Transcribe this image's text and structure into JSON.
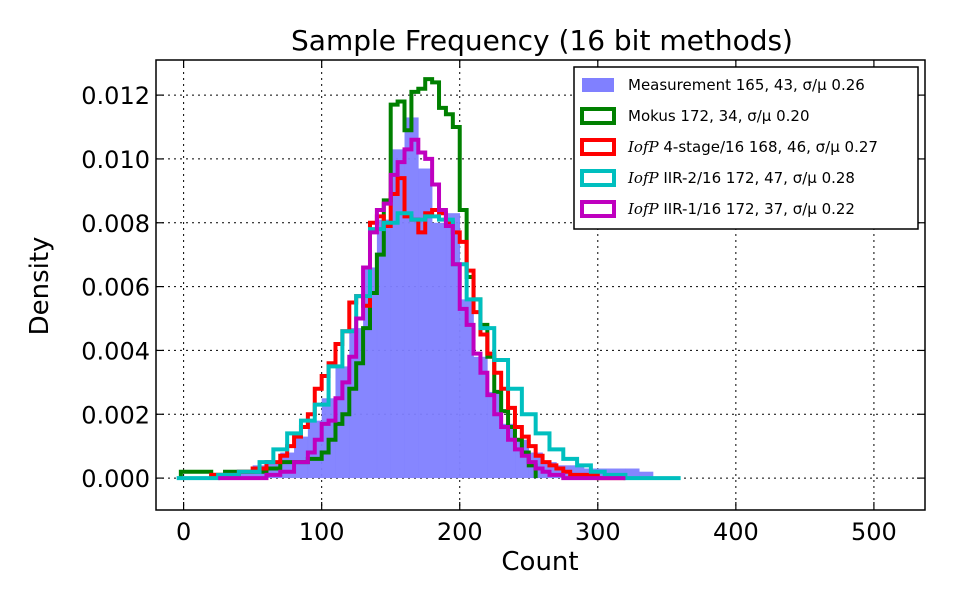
{
  "chart_data": {
    "type": "histogram",
    "title": "Sample Frequency (16 bit methods)",
    "xlabel": "Count",
    "ylabel": "Density",
    "xlim": [
      -20,
      537
    ],
    "ylim": [
      -0.001,
      0.0131
    ],
    "xticks": [
      0,
      100,
      200,
      300,
      400,
      500
    ],
    "yticks": [
      0.0,
      0.002,
      0.004,
      0.006,
      0.008,
      0.01,
      0.012
    ],
    "xtick_labels": [
      "0",
      "100",
      "200",
      "300",
      "400",
      "500"
    ],
    "ytick_labels": [
      "0.000",
      "0.002",
      "0.004",
      "0.006",
      "0.008",
      "0.010",
      "0.012"
    ],
    "grid": true,
    "legend_position": "top-right",
    "series": [
      {
        "name": "Measurement 165, 43, σ/μ 0.26",
        "style": "filled",
        "color": "#8080ff",
        "bin_width": 10,
        "bins_start": [
          30,
          40,
          50,
          60,
          70,
          80,
          90,
          100,
          110,
          120,
          130,
          140,
          150,
          160,
          170,
          180,
          190,
          200,
          210,
          220,
          230,
          240,
          250,
          260,
          270,
          280,
          290,
          300,
          310,
          320,
          330
        ],
        "values": [
          0.0002,
          0.0002,
          0.0004,
          0.0005,
          0.0008,
          0.0013,
          0.0018,
          0.0025,
          0.0035,
          0.0047,
          0.0066,
          0.0081,
          0.0103,
          0.0113,
          0.0097,
          0.008,
          0.0083,
          0.0056,
          0.0038,
          0.0027,
          0.0017,
          0.0012,
          0.0008,
          0.0005,
          0.0004,
          0.0004,
          0.0003,
          0.0003,
          0.0003,
          0.0003,
          0.0002
        ]
      },
      {
        "name": "Mokus 172, 34, σ/μ 0.20",
        "style": "step",
        "color": "#008000",
        "x_start": -2,
        "edges": [
          -2,
          10,
          20,
          30,
          40,
          50,
          60,
          70,
          80,
          90,
          100,
          105,
          110,
          115,
          120,
          125,
          130,
          135,
          140,
          145,
          150,
          155,
          160,
          165,
          170,
          175,
          180,
          185,
          190,
          195,
          200,
          205,
          210,
          215,
          220,
          225,
          230,
          235,
          240,
          245,
          250,
          255
        ],
        "values": [
          0.0002,
          0.0002,
          0.0001,
          0.0002,
          0.0002,
          0.0002,
          0.0003,
          0.0005,
          0.0005,
          0.0006,
          0.0008,
          0.0012,
          0.0017,
          0.002,
          0.0028,
          0.0036,
          0.0047,
          0.0058,
          0.007,
          0.0087,
          0.0117,
          0.0118,
          0.0109,
          0.0121,
          0.0122,
          0.0125,
          0.0124,
          0.0116,
          0.0114,
          0.011,
          0.0084,
          0.0063,
          0.0056,
          0.0048,
          0.0038,
          0.0027,
          0.0021,
          0.0016,
          0.0012,
          0.0008,
          0.0004
        ]
      },
      {
        "name": "4-stage/16 168, 46, σ/μ 0.27",
        "label_prefix": "IofP",
        "style": "step",
        "color": "#ff0000",
        "edges": [
          20,
          30,
          40,
          50,
          60,
          70,
          75,
          80,
          85,
          90,
          95,
          100,
          105,
          110,
          115,
          120,
          125,
          130,
          135,
          140,
          145,
          150,
          155,
          160,
          165,
          170,
          175,
          180,
          185,
          190,
          195,
          200,
          205,
          210,
          215,
          220,
          225,
          230,
          235,
          240,
          245,
          250,
          255,
          260,
          265,
          270,
          275,
          280,
          290,
          300,
          310,
          320
        ],
        "values": [
          0.0001,
          0.0001,
          0.0002,
          0.0003,
          0.0005,
          0.0007,
          0.001,
          0.0013,
          0.0016,
          0.002,
          0.0028,
          0.0032,
          0.0036,
          0.0042,
          0.0046,
          0.0055,
          0.0057,
          0.0054,
          0.008,
          0.0082,
          0.0079,
          0.0089,
          0.0094,
          0.0082,
          0.0081,
          0.0077,
          0.0083,
          0.0084,
          0.0083,
          0.008,
          0.0077,
          0.0074,
          0.0065,
          0.0052,
          0.0045,
          0.0039,
          0.0033,
          0.0028,
          0.0022,
          0.0016,
          0.0013,
          0.001,
          0.0007,
          0.0005,
          0.0004,
          0.0003,
          0.0002,
          0.0001,
          0.0001,
          0.0,
          0.0
        ]
      },
      {
        "name": "IIR-2/16 172, 47, σ/μ 0.28",
        "label_prefix": "IofP",
        "style": "step",
        "color": "#00bfbf",
        "edges": [
          -5,
          10,
          25,
          40,
          55,
          65,
          75,
          85,
          95,
          105,
          115,
          125,
          135,
          145,
          155,
          165,
          175,
          185,
          195,
          205,
          215,
          225,
          235,
          245,
          255,
          265,
          275,
          285,
          295,
          305,
          320,
          335,
          350,
          360
        ],
        "values": [
          0.0,
          0.0,
          0.0001,
          0.0002,
          0.0005,
          0.0009,
          0.0014,
          0.0018,
          0.0023,
          0.0035,
          0.0046,
          0.0057,
          0.0078,
          0.008,
          0.0083,
          0.0081,
          0.0082,
          0.0081,
          0.0067,
          0.0056,
          0.0047,
          0.0037,
          0.0028,
          0.002,
          0.0014,
          0.0009,
          0.0006,
          0.0004,
          0.0002,
          0.0001,
          0.0,
          0.0,
          0.0
        ]
      },
      {
        "name": "IIR-1/16 172, 37, σ/μ 0.22",
        "label_prefix": "IofP",
        "style": "step",
        "color": "#bf00bf",
        "edges": [
          25,
          50,
          60,
          70,
          80,
          90,
          95,
          100,
          105,
          110,
          115,
          120,
          125,
          130,
          135,
          140,
          145,
          150,
          155,
          160,
          165,
          170,
          175,
          180,
          185,
          190,
          195,
          200,
          205,
          210,
          215,
          220,
          225,
          230,
          235,
          240,
          245,
          250,
          255,
          260,
          265,
          270,
          275,
          280,
          290,
          300,
          310,
          320
        ],
        "values": [
          0.0,
          0.0,
          0.0001,
          0.0002,
          0.0005,
          0.0008,
          0.0012,
          0.0017,
          0.0018,
          0.0025,
          0.003,
          0.0038,
          0.005,
          0.0066,
          0.0077,
          0.0084,
          0.0086,
          0.0095,
          0.0099,
          0.0103,
          0.0106,
          0.0102,
          0.01,
          0.0092,
          0.0084,
          0.0079,
          0.0067,
          0.0053,
          0.0048,
          0.0039,
          0.0033,
          0.0026,
          0.002,
          0.0016,
          0.0012,
          0.0009,
          0.0007,
          0.0005,
          0.0003,
          0.0002,
          0.0001,
          0.0001,
          0.0,
          0.0,
          0.0,
          0.0,
          0.0
        ]
      }
    ],
    "legend": [
      {
        "series_index": 0,
        "prefix": "",
        "text": "Measurement  165,  43, σ/μ 0.26"
      },
      {
        "series_index": 1,
        "prefix": "",
        "text": "Mokus  172,  34, σ/μ 0.20"
      },
      {
        "series_index": 2,
        "prefix": "IofP",
        "text": "4-stage/16  168,  46, σ/μ 0.27"
      },
      {
        "series_index": 3,
        "prefix": "IofP",
        "text": "IIR-2/16  172,  47, σ/μ 0.28"
      },
      {
        "series_index": 4,
        "prefix": "IofP",
        "text": "IIR-1/16  172,  37, σ/μ 0.22"
      }
    ]
  }
}
